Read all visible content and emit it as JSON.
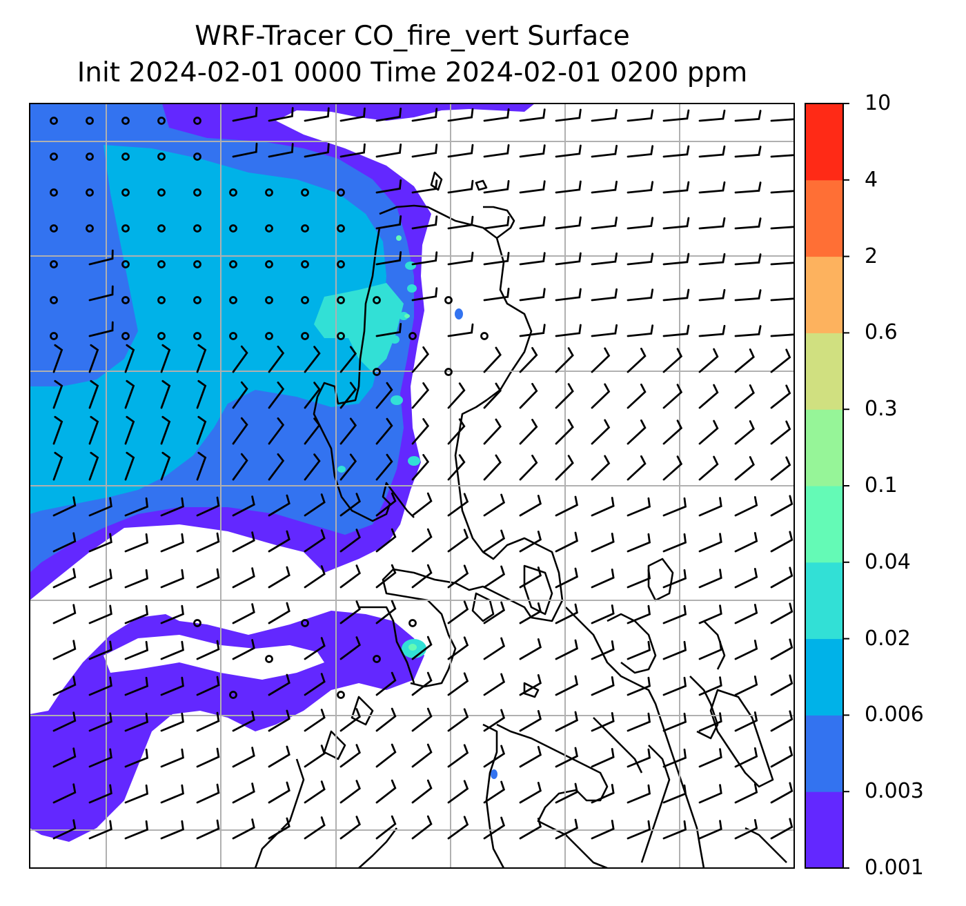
{
  "title": {
    "line1": "WRF-Tracer CO_fire_vert Surface",
    "line2": "Init 2024-02-01 0000 Time 2024-02-01 0200 ppm"
  },
  "colorbar": {
    "levels": [
      "0.001",
      "0.003",
      "0.006",
      "0.02",
      "0.04",
      "0.1",
      "0.3",
      "0.6",
      "2",
      "4",
      "10"
    ],
    "colors": [
      "#6328ff",
      "#3373f0",
      "#00b2e8",
      "#32e0d6",
      "#64fab6",
      "#96f598",
      "#d0e080",
      "#fdb25e",
      "#ff6f35",
      "#ff2a16"
    ]
  },
  "map": {
    "background": "#ffffff",
    "gridline_color": "#b0b0b0"
  }
}
